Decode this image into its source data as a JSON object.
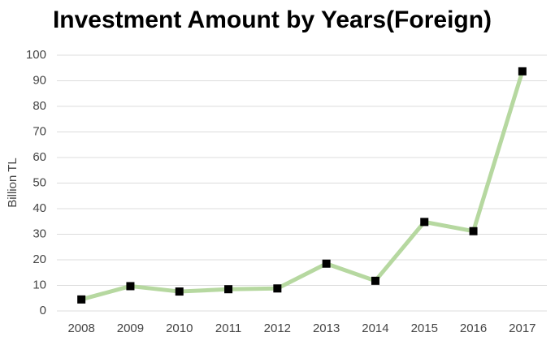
{
  "chart_data": {
    "type": "line",
    "title": "Investment Amount by Years(Foreign)",
    "y_label": "Billion TL",
    "categories": [
      "2008",
      "2009",
      "2010",
      "2011",
      "2012",
      "2013",
      "2014",
      "2015",
      "2016",
      "2017"
    ],
    "series": [
      {
        "color": "#b6d8a0",
        "marker_color": "#000000",
        "values": [
          4.5,
          9.7,
          7.6,
          8.5,
          8.8,
          18.5,
          11.8,
          34.8,
          31.2,
          93.7
        ]
      }
    ],
    "ylim": [
      0,
      100
    ],
    "yticks": [
      0,
      10,
      20,
      30,
      40,
      50,
      60,
      70,
      80,
      90,
      100
    ],
    "grid": true
  }
}
